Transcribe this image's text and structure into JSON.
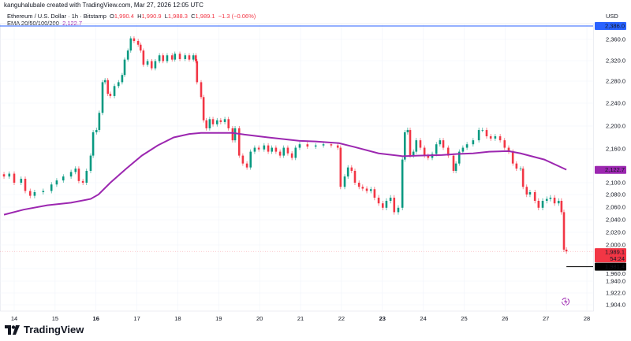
{
  "header": {
    "credit": "kanguhalubale created with TradingView.com, Mar 27, 2026 12:05 UTC",
    "symbol": "Ethereum / U.S. Dollar · 1h · Bitstamp",
    "open_label": "O",
    "open": "1,990.4",
    "high_label": "H",
    "high": "1,990.9",
    "low_label": "L",
    "low": "1,988.3",
    "close_label": "C",
    "close": "1,989.1",
    "change": "−1.3 (−0.06%)",
    "ema_label": "EMA 20/50/100/200",
    "ema_value": "2,122.7",
    "currency": "USD"
  },
  "footer": {
    "brand": "TradingView"
  },
  "chart_data": {
    "type": "candlestick",
    "title": "Ethereum / U.S. Dollar · 1h · Bitstamp",
    "x_ticks": [
      {
        "day": 14,
        "label": "14"
      },
      {
        "day": 15,
        "label": "15"
      },
      {
        "day": 16,
        "label": "16",
        "bold": true
      },
      {
        "day": 17,
        "label": "17"
      },
      {
        "day": 18,
        "label": "18"
      },
      {
        "day": 19,
        "label": "19"
      },
      {
        "day": 20,
        "label": "20"
      },
      {
        "day": 21,
        "label": "21"
      },
      {
        "day": 22,
        "label": "22"
      },
      {
        "day": 23,
        "label": "23",
        "bold": true
      },
      {
        "day": 24,
        "label": "24"
      },
      {
        "day": 25,
        "label": "25"
      },
      {
        "day": 26,
        "label": "26"
      },
      {
        "day": 27,
        "label": "27"
      },
      {
        "day": 28,
        "label": "28"
      }
    ],
    "y_ticks": [
      "2,360.0",
      "2,320.0",
      "2,280.0",
      "2,240.0",
      "2,200.0",
      "2,160.0",
      "2,100.0",
      "2,080.0",
      "2,060.0",
      "2,040.0",
      "2,020.0",
      "2,000.0",
      "1,960.0",
      "1,940.0",
      "1,922.0",
      "1,904.0"
    ],
    "y_tick_values": [
      2360,
      2320,
      2280,
      2240,
      2200,
      2160,
      2100,
      2080,
      2060,
      2040,
      2020,
      2000,
      1960,
      1940,
      1922,
      1904
    ],
    "price_lines": [
      {
        "value": 2386,
        "label": "2,386.0",
        "color": "#2962ff"
      },
      {
        "value": 2122.7,
        "label": "2,122.7",
        "color": "#9c27b0"
      },
      {
        "value": 1989.1,
        "label": "1,989.1",
        "sublabel": "54:24",
        "color": "#f23645"
      },
      {
        "value": 1981.4,
        "label": "1,981.4",
        "color": "#000000"
      }
    ],
    "colors": {
      "up": "#089981",
      "down": "#f23645",
      "ema": "#9c27b0"
    },
    "closes": [
      [
        13.75,
        2111
      ],
      [
        13.88,
        2116
      ],
      [
        14.0,
        2100
      ],
      [
        14.17,
        2107
      ],
      [
        14.27,
        2086
      ],
      [
        14.39,
        2078
      ],
      [
        14.5,
        2084
      ],
      [
        14.71,
        2086
      ],
      [
        14.91,
        2097
      ],
      [
        15.04,
        2104
      ],
      [
        15.2,
        2111
      ],
      [
        15.39,
        2119
      ],
      [
        15.5,
        2125
      ],
      [
        15.58,
        2103
      ],
      [
        15.68,
        2100
      ],
      [
        15.77,
        2121
      ],
      [
        15.87,
        2148
      ],
      [
        15.93,
        2189
      ],
      [
        16.01,
        2193
      ],
      [
        16.08,
        2223
      ],
      [
        16.16,
        2278
      ],
      [
        16.22,
        2282
      ],
      [
        16.29,
        2257
      ],
      [
        16.35,
        2253
      ],
      [
        16.45,
        2271
      ],
      [
        16.55,
        2278
      ],
      [
        16.64,
        2292
      ],
      [
        16.7,
        2322
      ],
      [
        16.78,
        2339
      ],
      [
        16.85,
        2362
      ],
      [
        16.93,
        2357
      ],
      [
        17.03,
        2350
      ],
      [
        17.09,
        2339
      ],
      [
        17.16,
        2312
      ],
      [
        17.26,
        2319
      ],
      [
        17.36,
        2305
      ],
      [
        17.45,
        2319
      ],
      [
        17.55,
        2330
      ],
      [
        17.64,
        2319
      ],
      [
        17.74,
        2330
      ],
      [
        17.86,
        2322
      ],
      [
        17.93,
        2333
      ],
      [
        18.05,
        2323
      ],
      [
        18.18,
        2330
      ],
      [
        18.28,
        2322
      ],
      [
        18.38,
        2330
      ],
      [
        18.44,
        2319
      ],
      [
        18.47,
        2278
      ],
      [
        18.57,
        2251
      ],
      [
        18.63,
        2210
      ],
      [
        18.7,
        2196
      ],
      [
        18.78,
        2212
      ],
      [
        18.86,
        2203
      ],
      [
        18.96,
        2210
      ],
      [
        19.05,
        2207
      ],
      [
        19.15,
        2212
      ],
      [
        19.24,
        2196
      ],
      [
        19.34,
        2175
      ],
      [
        19.4,
        2196
      ],
      [
        19.5,
        2148
      ],
      [
        19.59,
        2134
      ],
      [
        19.69,
        2127
      ],
      [
        19.78,
        2155
      ],
      [
        19.88,
        2162
      ],
      [
        19.98,
        2159
      ],
      [
        20.11,
        2166
      ],
      [
        20.21,
        2155
      ],
      [
        20.3,
        2162
      ],
      [
        20.4,
        2155
      ],
      [
        20.5,
        2148
      ],
      [
        20.59,
        2162
      ],
      [
        20.69,
        2152
      ],
      [
        20.79,
        2144
      ],
      [
        20.88,
        2162
      ],
      [
        20.98,
        2168
      ],
      [
        21.17,
        2164
      ],
      [
        21.37,
        2166
      ],
      [
        21.56,
        2168
      ],
      [
        21.75,
        2166
      ],
      [
        21.91,
        2162
      ],
      [
        21.98,
        2093
      ],
      [
        22.08,
        2111
      ],
      [
        22.16,
        2127
      ],
      [
        22.25,
        2121
      ],
      [
        22.33,
        2100
      ],
      [
        22.43,
        2093
      ],
      [
        22.52,
        2090
      ],
      [
        22.62,
        2086
      ],
      [
        22.72,
        2089
      ],
      [
        22.81,
        2075
      ],
      [
        22.91,
        2066
      ],
      [
        23.01,
        2059
      ],
      [
        23.1,
        2070
      ],
      [
        23.2,
        2075
      ],
      [
        23.29,
        2052
      ],
      [
        23.39,
        2059
      ],
      [
        23.49,
        2141
      ],
      [
        23.55,
        2189
      ],
      [
        23.62,
        2193
      ],
      [
        23.68,
        2148
      ],
      [
        23.76,
        2155
      ],
      [
        23.83,
        2175
      ],
      [
        23.93,
        2162
      ],
      [
        24.03,
        2148
      ],
      [
        24.12,
        2144
      ],
      [
        24.22,
        2151
      ],
      [
        24.32,
        2168
      ],
      [
        24.41,
        2175
      ],
      [
        24.49,
        2162
      ],
      [
        24.61,
        2148
      ],
      [
        24.74,
        2121
      ],
      [
        24.8,
        2134
      ],
      [
        24.88,
        2155
      ],
      [
        24.97,
        2162
      ],
      [
        25.07,
        2168
      ],
      [
        25.22,
        2175
      ],
      [
        25.36,
        2193
      ],
      [
        25.45,
        2193
      ],
      [
        25.55,
        2182
      ],
      [
        25.65,
        2178
      ],
      [
        25.76,
        2182
      ],
      [
        25.88,
        2175
      ],
      [
        25.99,
        2162
      ],
      [
        26.09,
        2155
      ],
      [
        26.19,
        2134
      ],
      [
        26.28,
        2125
      ],
      [
        26.38,
        2125
      ],
      [
        26.44,
        2093
      ],
      [
        26.53,
        2080
      ],
      [
        26.61,
        2084
      ],
      [
        26.73,
        2070
      ],
      [
        26.82,
        2059
      ],
      [
        26.92,
        2070
      ],
      [
        27.02,
        2073
      ],
      [
        27.11,
        2075
      ],
      [
        27.21,
        2066
      ],
      [
        27.31,
        2070
      ],
      [
        27.38,
        2052
      ],
      [
        27.44,
        1992
      ],
      [
        27.5,
        1989
      ]
    ],
    "ema": [
      [
        13.75,
        2048
      ],
      [
        14.23,
        2056
      ],
      [
        14.81,
        2063
      ],
      [
        15.39,
        2067
      ],
      [
        15.87,
        2073
      ],
      [
        16.06,
        2080
      ],
      [
        16.35,
        2100
      ],
      [
        16.74,
        2125
      ],
      [
        17.12,
        2148
      ],
      [
        17.51,
        2166
      ],
      [
        17.9,
        2180
      ],
      [
        18.28,
        2186
      ],
      [
        18.57,
        2188
      ],
      [
        18.96,
        2188
      ],
      [
        19.34,
        2188
      ],
      [
        19.63,
        2185
      ],
      [
        20.21,
        2180
      ],
      [
        20.98,
        2174
      ],
      [
        21.37,
        2173
      ],
      [
        21.94,
        2170
      ],
      [
        22.33,
        2163
      ],
      [
        22.91,
        2152
      ],
      [
        23.49,
        2147
      ],
      [
        23.87,
        2148
      ],
      [
        24.45,
        2149
      ],
      [
        24.84,
        2151
      ],
      [
        25.22,
        2152
      ],
      [
        25.61,
        2155
      ],
      [
        26.09,
        2156
      ],
      [
        26.38,
        2152
      ],
      [
        26.96,
        2141
      ],
      [
        27.5,
        2123
      ]
    ]
  }
}
